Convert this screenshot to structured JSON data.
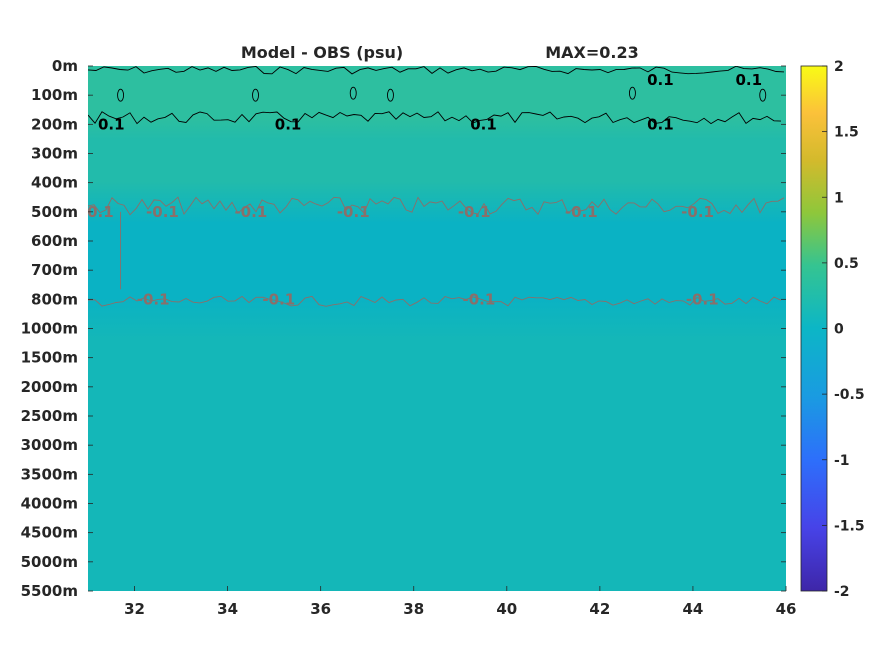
{
  "title": "Model - OBS (psu)",
  "max_label": "MAX=0.23",
  "colors": {
    "top_band": "#2dbfa0",
    "upper": "#22bbab",
    "mid_band": "#0ab2c4",
    "deep": "#14b7b8",
    "positive_contour": "#000000",
    "negative_contour": "#8a6f6a"
  },
  "chart_data": {
    "type": "heatmap",
    "title": "Model - OBS (psu)",
    "annotation": "MAX=0.23",
    "x_ticks": [
      32,
      34,
      36,
      38,
      40,
      42,
      44,
      46
    ],
    "x_range": [
      31,
      46
    ],
    "y_ticks": [
      "0m",
      "100m",
      "200m",
      "300m",
      "400m",
      "500m",
      "600m",
      "700m",
      "800m",
      "1000m",
      "1500m",
      "2000m",
      "2500m",
      "3000m",
      "3500m",
      "4000m",
      "4500m",
      "5000m",
      "5500m"
    ],
    "colorbar": {
      "min": -2,
      "max": 2,
      "ticks": [
        "2",
        "1.5",
        "1",
        "0.5",
        "0",
        "-0.5",
        "-1",
        "-1.5",
        "-2"
      ],
      "colormap": "parula"
    },
    "contours": [
      {
        "level": 0.1,
        "labels": [
          {
            "text": "0.1",
            "x": 45.2,
            "depth": "0m"
          },
          {
            "text": "0.1",
            "x": 43.3,
            "depth": "0m"
          },
          {
            "text": "0.1",
            "x": 31.5,
            "depth": "200m"
          },
          {
            "text": "0.1",
            "x": 35.3,
            "depth": "200m"
          },
          {
            "text": "0.1",
            "x": 39.5,
            "depth": "200m"
          },
          {
            "text": "0.1",
            "x": 43.3,
            "depth": "200m"
          }
        ]
      },
      {
        "level": -0.1,
        "labels": [
          {
            "text": "-0.1",
            "x": 31.2,
            "depth": "500m"
          },
          {
            "text": "-0.1",
            "x": 32.6,
            "depth": "500m"
          },
          {
            "text": "-0.1",
            "x": 34.5,
            "depth": "500m"
          },
          {
            "text": "-0.1",
            "x": 36.7,
            "depth": "500m"
          },
          {
            "text": "-0.1",
            "x": 39.3,
            "depth": "500m"
          },
          {
            "text": "-0.1",
            "x": 41.6,
            "depth": "500m"
          },
          {
            "text": "-0.1",
            "x": 44.1,
            "depth": "500m"
          },
          {
            "text": "-0.1",
            "x": 32.4,
            "depth": "800m"
          },
          {
            "text": "-0.1",
            "x": 35.1,
            "depth": "800m"
          },
          {
            "text": "-0.1",
            "x": 39.4,
            "depth": "800m"
          },
          {
            "text": "-0.1",
            "x": 44.2,
            "depth": "800m"
          }
        ]
      }
    ]
  }
}
